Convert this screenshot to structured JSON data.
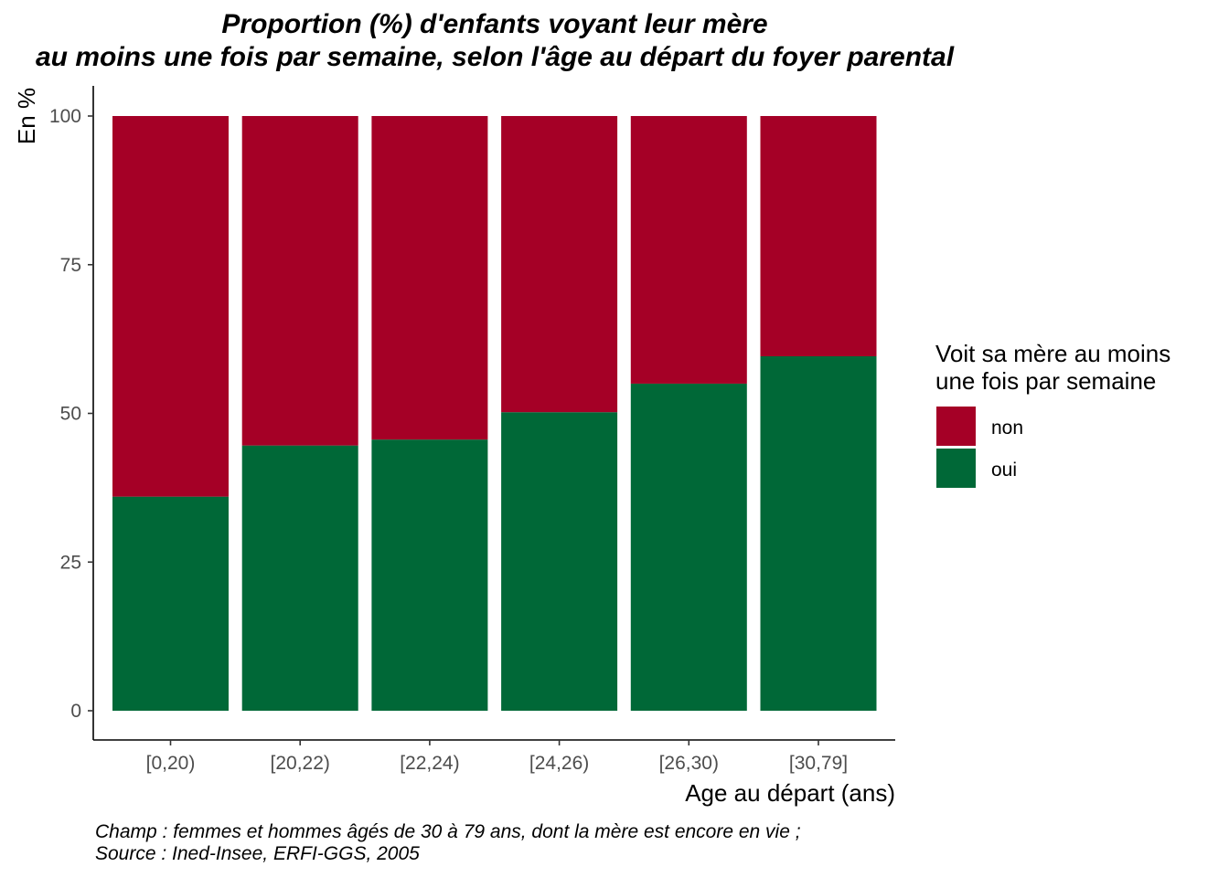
{
  "chart_data": {
    "type": "bar",
    "stacked": true,
    "title": "Proportion (%) d'enfants voyant leur mère\nau moins une fois par semaine, selon l'âge au départ du foyer parental",
    "title_lines": [
      "Proportion (%) d'enfants voyant leur mère",
      "au moins une fois par semaine, selon l'âge au départ du foyer parental"
    ],
    "xlabel": "Age au départ (ans)",
    "ylabel": "En %",
    "ylim": [
      0,
      100
    ],
    "yticks": [
      0,
      25,
      50,
      75,
      100
    ],
    "categories": [
      "[0,20)",
      "[20,22)",
      "[22,24)",
      "[24,26)",
      "[26,30)",
      "[30,79]"
    ],
    "series": [
      {
        "name": "oui",
        "color": "#006837",
        "values": [
          36,
          44.6,
          45.6,
          50.2,
          55,
          59.6
        ]
      },
      {
        "name": "non",
        "color": "#A50026",
        "values": [
          64,
          55.4,
          54.4,
          49.8,
          45,
          40.4
        ]
      }
    ],
    "legend": {
      "title_lines": [
        "Voit sa mère au moins",
        "une fois par semaine"
      ],
      "entries": [
        {
          "label": "non",
          "color": "#A50026"
        },
        {
          "label": "oui",
          "color": "#006837"
        }
      ],
      "placement": "right"
    },
    "caption_lines": [
      "Champ : femmes et hommes âgés de 30 à 79 ans, dont la mère est encore en vie ;",
      "Source : Ined-Insee, ERFI-GGS, 2005"
    ],
    "grid": false
  }
}
